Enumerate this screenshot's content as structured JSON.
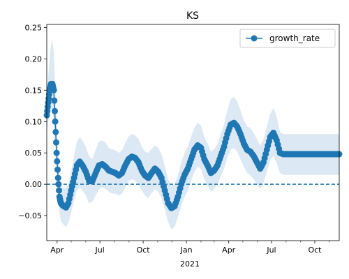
{
  "chart_data": {
    "type": "line",
    "title": "KS",
    "xlabel": "",
    "ylabel": "",
    "x_tick_labels": [
      "Apr",
      "Jul",
      "Oct",
      "Jan",
      "Apr",
      "Jul",
      "Oct"
    ],
    "x_year_label": "2021",
    "y_ticks": [
      -0.05,
      0.0,
      0.05,
      0.1,
      0.15,
      0.2,
      0.25
    ],
    "y_tick_labels": [
      "−0.05",
      "0.00",
      "0.05",
      "0.10",
      "0.15",
      "0.20",
      "0.25"
    ],
    "ylim": [
      -0.09,
      0.255
    ],
    "xlim": [
      "2020-03-10",
      "2021-11-22"
    ],
    "grid": false,
    "legend": {
      "position": "top-right",
      "entries": [
        "growth_rate"
      ]
    },
    "reference_line": {
      "y": 0.0,
      "style": "dashed"
    },
    "colors": {
      "series": "#1f77b4",
      "band": "#dce9f5"
    },
    "series": [
      {
        "name": "growth_rate",
        "marker": "circle",
        "x": [
          "2020-03-10",
          "2020-03-13",
          "2020-03-16",
          "2020-03-19",
          "2020-03-22",
          "2020-03-25",
          "2020-03-28",
          "2020-03-31",
          "2020-04-03",
          "2020-04-06",
          "2020-04-09",
          "2020-04-12",
          "2020-04-15",
          "2020-04-20",
          "2020-04-25",
          "2020-05-01",
          "2020-05-07",
          "2020-05-13",
          "2020-05-19",
          "2020-05-25",
          "2020-06-01",
          "2020-06-08",
          "2020-06-15",
          "2020-06-22",
          "2020-06-29",
          "2020-07-06",
          "2020-07-13",
          "2020-07-20",
          "2020-07-27",
          "2020-08-03",
          "2020-08-10",
          "2020-08-17",
          "2020-08-24",
          "2020-08-31",
          "2020-09-07",
          "2020-09-14",
          "2020-09-21",
          "2020-09-28",
          "2020-10-05",
          "2020-10-12",
          "2020-10-19",
          "2020-10-26",
          "2020-11-02",
          "2020-11-09",
          "2020-11-16",
          "2020-11-23",
          "2020-11-30",
          "2020-12-07",
          "2020-12-14",
          "2020-12-21",
          "2020-12-28",
          "2021-01-04",
          "2021-01-11",
          "2021-01-18",
          "2021-01-25",
          "2021-02-01",
          "2021-02-08",
          "2021-02-15",
          "2021-02-22",
          "2021-03-01",
          "2021-03-08",
          "2021-03-15",
          "2021-03-22",
          "2021-03-29",
          "2021-04-05",
          "2021-04-12",
          "2021-04-19",
          "2021-04-26",
          "2021-05-03",
          "2021-05-10",
          "2021-05-17",
          "2021-05-24",
          "2021-05-31",
          "2021-06-07",
          "2021-06-14",
          "2021-06-21",
          "2021-06-28",
          "2021-07-05",
          "2021-07-12",
          "2021-07-19",
          "2021-07-26",
          "2021-08-02",
          "2021-08-09",
          "2021-08-16",
          "2021-08-23",
          "2021-08-30",
          "2021-09-06",
          "2021-09-13",
          "2021-09-20",
          "2021-09-27",
          "2021-10-04",
          "2021-10-11",
          "2021-10-18",
          "2021-10-25",
          "2021-11-01",
          "2021-11-08",
          "2021-11-15",
          "2021-11-22"
        ],
        "values": [
          0.11,
          0.13,
          0.15,
          0.16,
          0.16,
          0.15,
          0.1,
          0.05,
          0.01,
          -0.02,
          -0.03,
          -0.033,
          -0.035,
          -0.037,
          -0.03,
          -0.01,
          0.01,
          0.03,
          0.036,
          0.03,
          0.02,
          0.005,
          0.005,
          0.018,
          0.03,
          0.032,
          0.028,
          0.022,
          0.02,
          0.018,
          0.014,
          0.018,
          0.03,
          0.04,
          0.044,
          0.042,
          0.035,
          0.022,
          0.014,
          0.01,
          0.018,
          0.025,
          0.02,
          0.01,
          -0.01,
          -0.03,
          -0.038,
          -0.035,
          -0.02,
          0.0,
          0.015,
          0.025,
          0.04,
          0.055,
          0.062,
          0.058,
          0.04,
          0.03,
          0.018,
          0.022,
          0.03,
          0.045,
          0.06,
          0.08,
          0.095,
          0.098,
          0.092,
          0.08,
          0.065,
          0.055,
          0.052,
          0.045,
          0.035,
          0.025,
          0.035,
          0.055,
          0.075,
          0.082,
          0.07,
          0.05,
          0.048,
          0.048,
          0.048,
          0.048,
          0.048,
          0.048,
          0.048,
          0.048,
          0.048,
          0.048,
          0.048,
          0.048,
          0.048,
          0.048,
          0.048,
          0.048,
          0.048,
          0.048
        ],
        "band_low": [
          0.08,
          0.1,
          0.11,
          0.12,
          0.12,
          0.1,
          0.06,
          0.02,
          -0.02,
          -0.045,
          -0.058,
          -0.062,
          -0.065,
          -0.068,
          -0.062,
          -0.045,
          -0.025,
          -0.01,
          -0.005,
          -0.01,
          -0.018,
          -0.03,
          -0.028,
          -0.018,
          -0.008,
          -0.005,
          -0.008,
          -0.012,
          -0.015,
          -0.015,
          -0.018,
          -0.015,
          -0.005,
          0.005,
          0.008,
          0.006,
          0.0,
          -0.01,
          -0.018,
          -0.022,
          -0.014,
          -0.008,
          -0.012,
          -0.022,
          -0.04,
          -0.06,
          -0.072,
          -0.068,
          -0.052,
          -0.035,
          -0.02,
          -0.01,
          0.005,
          0.02,
          0.028,
          0.024,
          0.008,
          -0.002,
          -0.012,
          -0.008,
          0.0,
          0.012,
          0.025,
          0.042,
          0.055,
          0.058,
          0.052,
          0.04,
          0.028,
          0.018,
          0.014,
          0.008,
          0.0,
          -0.008,
          0.002,
          0.02,
          0.038,
          0.045,
          0.034,
          0.018,
          0.015,
          0.015,
          0.015,
          0.015,
          0.015,
          0.015,
          0.015,
          0.015,
          0.015,
          0.015,
          0.015,
          0.015,
          0.015,
          0.015,
          0.015,
          0.015,
          0.015,
          0.015
        ],
        "band_high": [
          0.15,
          0.17,
          0.2,
          0.22,
          0.23,
          0.21,
          0.16,
          0.1,
          0.05,
          0.012,
          -0.002,
          -0.005,
          -0.006,
          -0.006,
          0.0,
          0.022,
          0.045,
          0.068,
          0.075,
          0.07,
          0.06,
          0.045,
          0.04,
          0.055,
          0.068,
          0.07,
          0.066,
          0.058,
          0.056,
          0.054,
          0.05,
          0.054,
          0.066,
          0.076,
          0.08,
          0.078,
          0.072,
          0.06,
          0.052,
          0.05,
          0.056,
          0.062,
          0.058,
          0.048,
          0.03,
          0.008,
          -0.002,
          0.0,
          0.015,
          0.035,
          0.05,
          0.06,
          0.076,
          0.09,
          0.098,
          0.094,
          0.075,
          0.065,
          0.052,
          0.056,
          0.064,
          0.08,
          0.095,
          0.118,
          0.135,
          0.14,
          0.132,
          0.118,
          0.102,
          0.092,
          0.09,
          0.082,
          0.072,
          0.062,
          0.072,
          0.092,
          0.112,
          0.122,
          0.108,
          0.084,
          0.08,
          0.08,
          0.08,
          0.08,
          0.08,
          0.08,
          0.08,
          0.08,
          0.08,
          0.08,
          0.08,
          0.08,
          0.08,
          0.08,
          0.08,
          0.08,
          0.08,
          0.08
        ]
      }
    ]
  }
}
